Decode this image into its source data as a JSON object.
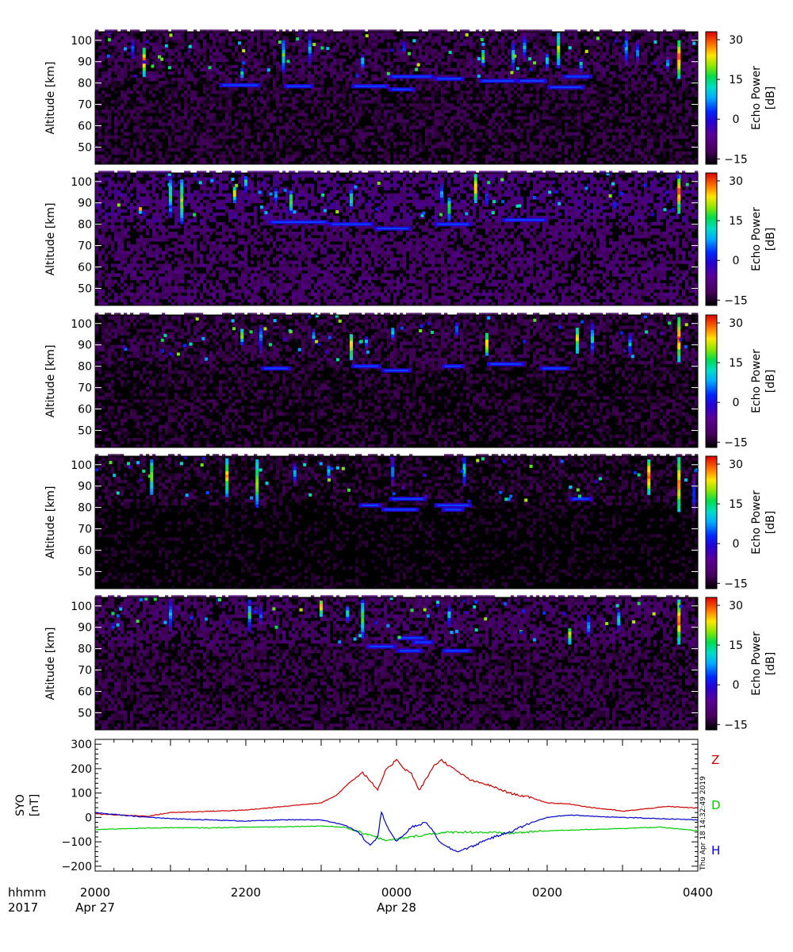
{
  "chart_data": [
    {
      "type": "heatmap",
      "panel": 1,
      "ylabel": "Altitude [km]",
      "yticks": [
        50,
        60,
        70,
        80,
        90,
        100
      ],
      "ylim": [
        42,
        104
      ],
      "colorbar": {
        "label": "Echo Power",
        "unit": "[dB]",
        "ticks": [
          -15,
          0,
          15,
          30
        ],
        "range": [
          -17,
          33
        ]
      },
      "layer_echoes": [
        {
          "x": [
            21.65,
            22.2
          ],
          "alt": 79
        },
        {
          "x": [
            22.5,
            22.9
          ],
          "alt": 78.5
        },
        {
          "x": [
            23.4,
            23.9
          ],
          "alt": 78.5
        },
        {
          "x": [
            23.9,
            24.25
          ],
          "alt": 77
        },
        {
          "x": [
            23.9,
            24.5
          ],
          "alt": 83
        },
        {
          "x": [
            24.5,
            24.9
          ],
          "alt": 82
        },
        {
          "x": [
            25.1,
            25.6
          ],
          "alt": 81
        },
        {
          "x": [
            25.6,
            26.0
          ],
          "alt": 81
        },
        {
          "x": [
            26.0,
            26.5
          ],
          "alt": 78
        },
        {
          "x": [
            26.2,
            26.6
          ],
          "alt": 83
        }
      ],
      "bursts": [
        {
          "x": 20.65,
          "alt": [
            83,
            97
          ],
          "dB": 28
        },
        {
          "x": 20.5,
          "alt": [
            90,
            100
          ],
          "dB": 8
        },
        {
          "x": 21.95,
          "alt": [
            81,
            87
          ],
          "dB": 14
        },
        {
          "x": 22.5,
          "alt": [
            85,
            100
          ],
          "dB": 16
        },
        {
          "x": 22.85,
          "alt": [
            88,
            103
          ],
          "dB": 10
        },
        {
          "x": 23.55,
          "alt": [
            86,
            93
          ],
          "dB": 12
        },
        {
          "x": 24.1,
          "alt": [
            92,
            100
          ],
          "dB": 6
        },
        {
          "x": 25.15,
          "alt": [
            88,
            95
          ],
          "dB": 20
        },
        {
          "x": 25.55,
          "alt": [
            85,
            100
          ],
          "dB": 12
        },
        {
          "x": 25.7,
          "alt": [
            90,
            103
          ],
          "dB": 9
        },
        {
          "x": 26.0,
          "alt": [
            86,
            94
          ],
          "dB": 14
        },
        {
          "x": 26.15,
          "alt": [
            87,
            103
          ],
          "dB": 22
        },
        {
          "x": 26.45,
          "alt": [
            84,
            92
          ],
          "dB": 10
        },
        {
          "x": 27.05,
          "alt": [
            88,
            103
          ],
          "dB": 12
        },
        {
          "x": 27.2,
          "alt": [
            88,
            100
          ],
          "dB": 8
        },
        {
          "x": 27.75,
          "alt": [
            82,
            100
          ],
          "dB": 30
        },
        {
          "x": 27.6,
          "alt": [
            85,
            92
          ],
          "dB": 8
        }
      ],
      "background_dB": -13
    },
    {
      "type": "heatmap",
      "panel": 2,
      "ylabel": "Altitude [km]",
      "yticks": [
        50,
        60,
        70,
        80,
        90,
        100
      ],
      "ylim": [
        42,
        104
      ],
      "colorbar": {
        "label": "Echo Power",
        "unit": "[dB]",
        "ticks": [
          -15,
          0,
          15,
          30
        ],
        "range": [
          -17,
          33
        ]
      },
      "layer_echoes": [
        {
          "x": [
            22.3,
            23.1
          ],
          "alt": 81
        },
        {
          "x": [
            23.1,
            23.7
          ],
          "alt": 80
        },
        {
          "x": [
            23.7,
            24.2
          ],
          "alt": 78
        },
        {
          "x": [
            24.5,
            25.0
          ],
          "alt": 80
        },
        {
          "x": [
            25.4,
            26.0
          ],
          "alt": 82
        }
      ],
      "bursts": [
        {
          "x": 20.6,
          "alt": [
            85,
            88
          ],
          "dB": 25
        },
        {
          "x": 21.0,
          "alt": [
            83,
            103
          ],
          "dB": 16
        },
        {
          "x": 21.15,
          "alt": [
            80,
            101
          ],
          "dB": 22
        },
        {
          "x": 21.85,
          "alt": [
            90,
            98
          ],
          "dB": 25
        },
        {
          "x": 22.0,
          "alt": [
            95,
            103
          ],
          "dB": 14
        },
        {
          "x": 22.4,
          "alt": [
            88,
            97
          ],
          "dB": 10
        },
        {
          "x": 22.6,
          "alt": [
            85,
            95
          ],
          "dB": 20
        },
        {
          "x": 23.4,
          "alt": [
            87,
            96
          ],
          "dB": 18
        },
        {
          "x": 24.6,
          "alt": [
            88,
            100
          ],
          "dB": 10
        },
        {
          "x": 24.7,
          "alt": [
            82,
            92
          ],
          "dB": 20
        },
        {
          "x": 25.05,
          "alt": [
            90,
            103
          ],
          "dB": 28
        },
        {
          "x": 25.2,
          "alt": [
            88,
            95
          ],
          "dB": 8
        },
        {
          "x": 26.9,
          "alt": [
            86,
            90
          ],
          "dB": 8
        },
        {
          "x": 27.75,
          "alt": [
            85,
            103
          ],
          "dB": 30
        }
      ],
      "background_dB": -9
    },
    {
      "type": "heatmap",
      "panel": 3,
      "ylabel": "Altitude [km]",
      "yticks": [
        50,
        60,
        70,
        80,
        90,
        100
      ],
      "ylim": [
        42,
        104
      ],
      "colorbar": {
        "label": "Echo Power",
        "unit": "[dB]",
        "ticks": [
          -15,
          0,
          15,
          30
        ],
        "range": [
          -17,
          33
        ]
      },
      "layer_echoes": [
        {
          "x": [
            22.2,
            22.6
          ],
          "alt": 79
        },
        {
          "x": [
            23.4,
            23.8
          ],
          "alt": 80
        },
        {
          "x": [
            23.8,
            24.2
          ],
          "alt": 78
        },
        {
          "x": [
            24.6,
            24.9
          ],
          "alt": 80
        },
        {
          "x": [
            25.2,
            25.7
          ],
          "alt": 81
        },
        {
          "x": [
            25.9,
            26.3
          ],
          "alt": 79
        }
      ],
      "bursts": [
        {
          "x": 21.95,
          "alt": [
            90,
            98
          ],
          "dB": 22
        },
        {
          "x": 22.2,
          "alt": [
            86,
            100
          ],
          "dB": 10
        },
        {
          "x": 22.9,
          "alt": [
            90,
            97
          ],
          "dB": 10
        },
        {
          "x": 23.4,
          "alt": [
            83,
            95
          ],
          "dB": 26
        },
        {
          "x": 23.6,
          "alt": [
            88,
            94
          ],
          "dB": 10
        },
        {
          "x": 23.95,
          "alt": [
            92,
            98
          ],
          "dB": 14
        },
        {
          "x": 24.8,
          "alt": [
            93,
            100
          ],
          "dB": 10
        },
        {
          "x": 25.2,
          "alt": [
            85,
            95
          ],
          "dB": 28
        },
        {
          "x": 26.4,
          "alt": [
            86,
            98
          ],
          "dB": 25
        },
        {
          "x": 26.6,
          "alt": [
            85,
            100
          ],
          "dB": 12
        },
        {
          "x": 27.1,
          "alt": [
            85,
            95
          ],
          "dB": 12
        },
        {
          "x": 27.75,
          "alt": [
            82,
            103
          ],
          "dB": 30
        }
      ],
      "background_dB": -14
    },
    {
      "type": "heatmap",
      "panel": 4,
      "ylabel": "Altitude [km]",
      "yticks": [
        50,
        60,
        70,
        80,
        90,
        100
      ],
      "ylim": [
        42,
        104
      ],
      "colorbar": {
        "label": "Echo Power",
        "unit": "[dB]",
        "ticks": [
          -15,
          0,
          15,
          30
        ],
        "range": [
          -17,
          33
        ]
      },
      "layer_echoes": [
        {
          "x": [
            23.5,
            23.8
          ],
          "alt": 81
        },
        {
          "x": [
            23.8,
            24.3
          ],
          "alt": 79
        },
        {
          "x": [
            23.9,
            24.4
          ],
          "alt": 84
        },
        {
          "x": [
            24.5,
            25.0
          ],
          "alt": 81
        },
        {
          "x": [
            24.6,
            24.9
          ],
          "alt": 79
        },
        {
          "x": [
            26.3,
            26.6
          ],
          "alt": 84
        }
      ],
      "bursts": [
        {
          "x": 20.75,
          "alt": [
            86,
            103
          ],
          "dB": 22
        },
        {
          "x": 21.75,
          "alt": [
            85,
            103
          ],
          "dB": 25
        },
        {
          "x": 22.15,
          "alt": [
            80,
            103
          ],
          "dB": 22
        },
        {
          "x": 22.65,
          "alt": [
            90,
            100
          ],
          "dB": 10
        },
        {
          "x": 23.1,
          "alt": [
            92,
            100
          ],
          "dB": 12
        },
        {
          "x": 23.95,
          "alt": [
            90,
            103
          ],
          "dB": 10
        },
        {
          "x": 24.9,
          "alt": [
            90,
            103
          ],
          "dB": 14
        },
        {
          "x": 27.35,
          "alt": [
            86,
            103
          ],
          "dB": 30
        },
        {
          "x": 27.75,
          "alt": [
            78,
            103
          ],
          "dB": 28
        },
        {
          "x": 27.95,
          "alt": [
            76,
            95
          ],
          "dB": 6
        }
      ],
      "background_dB": -16
    },
    {
      "type": "heatmap",
      "panel": 5,
      "ylabel": "Altitude [km]",
      "yticks": [
        50,
        60,
        70,
        80,
        90,
        100
      ],
      "ylim": [
        42,
        104
      ],
      "colorbar": {
        "label": "Echo Power",
        "unit": "[dB]",
        "ticks": [
          -15,
          0,
          15,
          30
        ],
        "range": [
          -17,
          33
        ]
      },
      "layer_echoes": [
        {
          "x": [
            23.6,
            24.0
          ],
          "alt": 81
        },
        {
          "x": [
            24.0,
            24.35
          ],
          "alt": 79
        },
        {
          "x": [
            24.0,
            24.4
          ],
          "alt": 85
        },
        {
          "x": [
            24.2,
            24.5
          ],
          "alt": 83
        },
        {
          "x": [
            24.6,
            25.0
          ],
          "alt": 79
        }
      ],
      "bursts": [
        {
          "x": 21.0,
          "alt": [
            88,
            103
          ],
          "dB": 10
        },
        {
          "x": 22.05,
          "alt": [
            88,
            103
          ],
          "dB": 14
        },
        {
          "x": 22.2,
          "alt": [
            90,
            100
          ],
          "dB": 8
        },
        {
          "x": 23.0,
          "alt": [
            95,
            103
          ],
          "dB": 28
        },
        {
          "x": 23.35,
          "alt": [
            92,
            100
          ],
          "dB": 16
        },
        {
          "x": 23.55,
          "alt": [
            85,
            103
          ],
          "dB": 18
        },
        {
          "x": 24.7,
          "alt": [
            90,
            100
          ],
          "dB": 12
        },
        {
          "x": 26.3,
          "alt": [
            82,
            90
          ],
          "dB": 26
        },
        {
          "x": 26.55,
          "alt": [
            85,
            95
          ],
          "dB": 12
        },
        {
          "x": 26.95,
          "alt": [
            88,
            98
          ],
          "dB": 14
        },
        {
          "x": 27.75,
          "alt": [
            82,
            103
          ],
          "dB": 30
        }
      ],
      "background_dB": -12
    },
    {
      "type": "line",
      "ylabel": "SYO",
      "yunit": "[nT]",
      "ylim": [
        -220,
        320
      ],
      "yticks": [
        -200,
        -100,
        0,
        100,
        200,
        300
      ],
      "series": [
        {
          "name": "Z",
          "color": "#cc0000",
          "x": [
            20.0,
            20.3,
            20.7,
            21.0,
            21.5,
            22.0,
            22.5,
            23.0,
            23.2,
            23.4,
            23.55,
            23.65,
            23.75,
            23.85,
            23.95,
            24.0,
            24.1,
            24.2,
            24.3,
            24.4,
            24.5,
            24.6,
            24.75,
            24.9,
            25.0,
            25.2,
            25.5,
            25.8,
            26.0,
            26.3,
            26.6,
            26.9,
            27.0,
            27.3,
            27.6,
            27.9,
            28.0
          ],
          "y": [
            15,
            10,
            5,
            20,
            25,
            30,
            45,
            60,
            90,
            150,
            185,
            150,
            110,
            190,
            220,
            240,
            200,
            180,
            110,
            160,
            215,
            235,
            200,
            170,
            150,
            135,
            100,
            80,
            60,
            55,
            40,
            30,
            25,
            35,
            45,
            40,
            38
          ]
        },
        {
          "name": "D",
          "color": "#00cc00",
          "x": [
            20.0,
            20.5,
            21.0,
            21.5,
            22.0,
            22.5,
            23.0,
            23.3,
            23.5,
            23.7,
            23.8,
            23.9,
            24.2,
            24.5,
            24.8,
            25.0,
            25.5,
            26.0,
            26.5,
            27.0,
            27.5,
            28.0
          ],
          "y": [
            -50,
            -45,
            -42,
            -43,
            -40,
            -38,
            -35,
            -40,
            -60,
            -75,
            -90,
            -95,
            -80,
            -65,
            -60,
            -60,
            -65,
            -55,
            -50,
            -45,
            -40,
            -55
          ]
        },
        {
          "name": "H",
          "color": "#0000cc",
          "x": [
            20.0,
            20.5,
            21.0,
            21.5,
            22.0,
            22.5,
            23.0,
            23.3,
            23.5,
            23.6,
            23.65,
            23.75,
            23.8,
            23.9,
            24.0,
            24.2,
            24.4,
            24.6,
            24.8,
            25.0,
            25.2,
            25.5,
            25.8,
            26.0,
            26.3,
            26.6,
            27.0,
            27.5,
            28.0
          ],
          "y": [
            20,
            5,
            -5,
            -10,
            -15,
            -10,
            -10,
            -30,
            -60,
            -100,
            -110,
            -80,
            20,
            -50,
            -100,
            -40,
            -20,
            -110,
            -140,
            -120,
            -90,
            -60,
            -20,
            0,
            10,
            5,
            0,
            -5,
            -10
          ]
        }
      ],
      "legend_placement": "right"
    }
  ],
  "xaxis": {
    "xlim": [
      20,
      28
    ],
    "row_label": "hhmm",
    "year_label": "2017",
    "ticks": [
      {
        "x": 20,
        "label": "2000",
        "date": "Apr 27"
      },
      {
        "x": 22,
        "label": "2200",
        "date": ""
      },
      {
        "x": 24,
        "label": "0000",
        "date": "Apr 28"
      },
      {
        "x": 26,
        "label": "0200",
        "date": ""
      },
      {
        "x": 28,
        "label": "0400",
        "date": ""
      }
    ]
  },
  "timestamp": "Thu Apr 18 14:32:49 2019"
}
